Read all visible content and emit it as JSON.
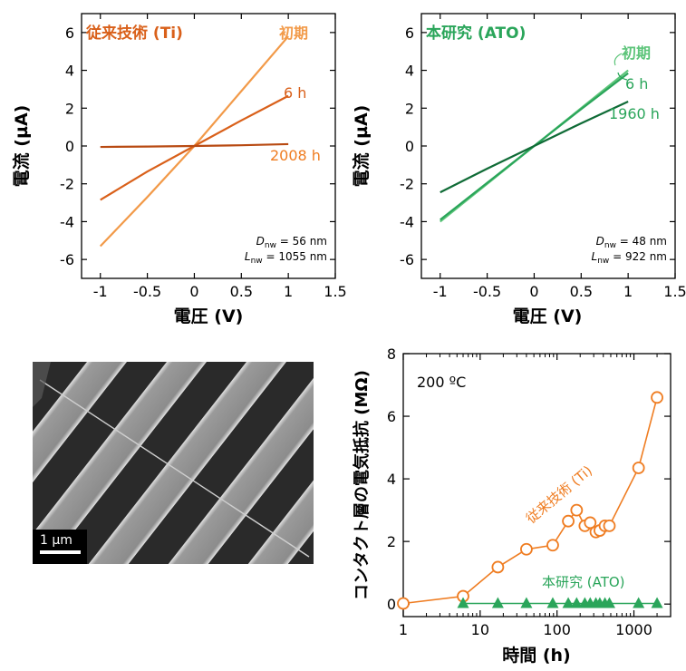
{
  "colors": {
    "orange_dark": "#d9601a",
    "orange_light": "#f29a49",
    "orange_marker": "#ef7d22",
    "green_dark": "#0f6b36",
    "green_mid": "#2aa55a",
    "green_light": "#5cc479"
  },
  "sem_image": {
    "scale_label": "1 µm"
  },
  "chart_data": [
    {
      "type": "line",
      "title": "従来技術 (Ti)",
      "xlabel": "電圧 (V)",
      "ylabel": "電流 (µA)",
      "xlim": [
        -1.2,
        1.5
      ],
      "ylim": [
        -7,
        7
      ],
      "xticks": [
        "-1",
        "-0.5",
        "0",
        "0.5",
        "1",
        "1.5"
      ],
      "yticks": [
        "-6",
        "-4",
        "-2",
        "0",
        "2",
        "4",
        "6"
      ],
      "series": [
        {
          "name": "初期",
          "color": "#f29a49",
          "x": [
            -1,
            -0.5,
            0,
            0.5,
            1
          ],
          "y": [
            -5.3,
            -2.7,
            0,
            2.9,
            5.8
          ]
        },
        {
          "name": "6 h",
          "color": "#d9601a",
          "x": [
            -1,
            -0.5,
            0,
            0.5,
            1
          ],
          "y": [
            -2.85,
            -1.35,
            0,
            1.35,
            2.65
          ]
        },
        {
          "name": "2008 h",
          "color": "#b84a12",
          "x": [
            -1,
            -0.5,
            0,
            0.5,
            1
          ],
          "y": [
            -0.05,
            -0.03,
            0,
            0.04,
            0.1
          ]
        }
      ],
      "annotation": {
        "d_label": "D",
        "d_sub": "nw",
        "d_value": " = 56 nm",
        "l_label": "L",
        "l_sub": "nw",
        "l_value": " = 1055 nm"
      }
    },
    {
      "type": "line",
      "title": "本研究 (ATO)",
      "xlabel": "電圧 (V)",
      "ylabel": "電流 (µA)",
      "xlim": [
        -1.2,
        1.5
      ],
      "ylim": [
        -7,
        7
      ],
      "xticks": [
        "-1",
        "-0.5",
        "0",
        "0.5",
        "1",
        "1.5"
      ],
      "yticks": [
        "-6",
        "-4",
        "-2",
        "0",
        "2",
        "4",
        "6"
      ],
      "series": [
        {
          "name": "初期",
          "color": "#5cc479",
          "x": [
            -1,
            -0.5,
            0,
            0.5,
            1
          ],
          "y": [
            -4.0,
            -2.0,
            0,
            2.0,
            4.0
          ]
        },
        {
          "name": "6 h",
          "color": "#2aa55a",
          "x": [
            -1,
            -0.5,
            0,
            0.5,
            1
          ],
          "y": [
            -3.9,
            -1.95,
            0,
            1.95,
            3.85
          ]
        },
        {
          "name": "1960 h",
          "color": "#0f6b36",
          "x": [
            -1,
            -0.5,
            0,
            0.5,
            1
          ],
          "y": [
            -2.45,
            -1.2,
            0,
            1.2,
            2.35
          ]
        }
      ],
      "annotation": {
        "d_label": "D",
        "d_sub": "nw",
        "d_value": " = 48 nm",
        "l_label": "L",
        "l_sub": "nw",
        "l_value": " = 922 nm"
      }
    },
    {
      "type": "scatter",
      "xlabel": "時間 (h)",
      "ylabel": "コンタクト層の電気抵抗 (MΩ)",
      "xscale": "log",
      "xlim": [
        1,
        3000
      ],
      "ylim": [
        -0.4,
        8
      ],
      "xticks": [
        "1",
        "10",
        "100",
        "1000"
      ],
      "yticks": [
        "0",
        "2",
        "4",
        "6",
        "8"
      ],
      "temperature_label": "200 ºC",
      "series": [
        {
          "name": "従来技術 (Ti)",
          "color": "#ef7d22",
          "marker": "circle",
          "x": [
            1,
            6,
            17,
            40,
            88,
            140,
            180,
            230,
            270,
            320,
            360,
            420,
            480,
            1150,
            2000
          ],
          "y": [
            0.02,
            0.25,
            1.18,
            1.75,
            1.88,
            2.65,
            3.0,
            2.5,
            2.6,
            2.3,
            2.35,
            2.5,
            2.5,
            4.35,
            6.6
          ]
        },
        {
          "name": "本研究 (ATO)",
          "color": "#2aa55a",
          "marker": "triangle",
          "x": [
            6,
            17,
            40,
            88,
            140,
            180,
            230,
            270,
            320,
            360,
            420,
            480,
            1150,
            2000
          ],
          "y": [
            0.02,
            0.02,
            0.02,
            0.02,
            0.02,
            0.02,
            0.02,
            0.02,
            0.02,
            0.02,
            0.02,
            0.02,
            0.02,
            0.02
          ]
        }
      ]
    }
  ]
}
